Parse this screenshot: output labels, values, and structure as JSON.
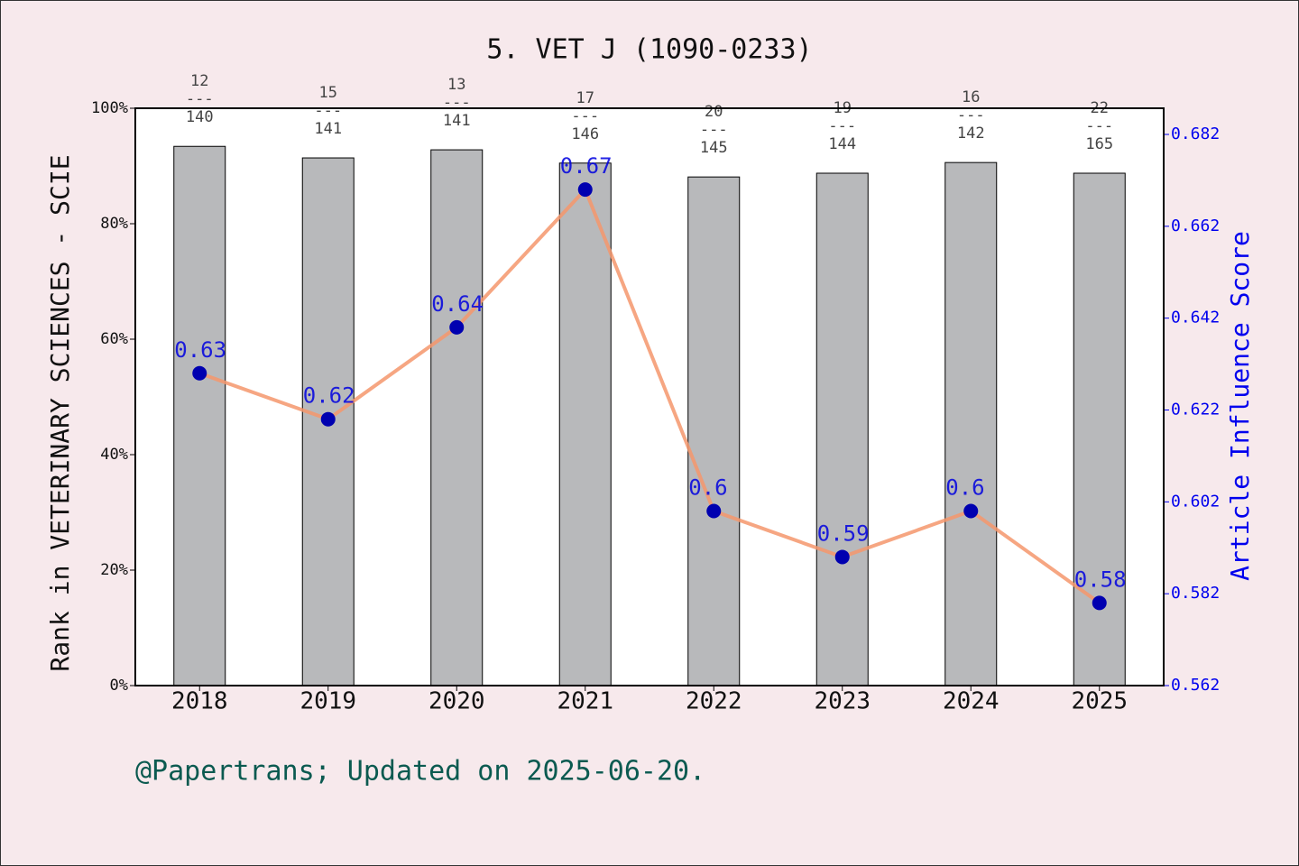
{
  "chart_data": {
    "type": "bar_line",
    "title": "5. VET J (1090-0233)",
    "y_label": "Rank in VETERINARY SCIENCES - SCIE",
    "y2_label": "Article Influence Score",
    "footer": "@Papertrans; Updated on 2025-06-20.",
    "categories": [
      "2018",
      "2019",
      "2020",
      "2021",
      "2022",
      "2023",
      "2024",
      "2025"
    ],
    "series": [
      {
        "type": "bar",
        "color": "#b8b9bb",
        "values": [
          93.4,
          91.4,
          92.8,
          90.5,
          88.1,
          88.75,
          90.6,
          88.75
        ]
      },
      {
        "type": "line",
        "axis": "y2",
        "color": "#f4976c",
        "marker_color": "#0000b0",
        "label_color": "#0000e0",
        "values": [
          0.63,
          0.62,
          0.64,
          0.67,
          0.6,
          0.59,
          0.6,
          0.58
        ]
      }
    ],
    "rank_annotations": [
      {
        "rank": 12,
        "total": 140
      },
      {
        "rank": 15,
        "total": 141
      },
      {
        "rank": 13,
        "total": 141
      },
      {
        "rank": 17,
        "total": 146
      },
      {
        "rank": 20,
        "total": 145
      },
      {
        "rank": 19,
        "total": 144
      },
      {
        "rank": 16,
        "total": 142
      },
      {
        "rank": 22,
        "total": 165
      }
    ],
    "separator": "---",
    "ylim": [
      0,
      100
    ],
    "yticks": [
      {
        "value": 0,
        "label": "0%"
      },
      {
        "value": 20,
        "label": "20%"
      },
      {
        "value": 40,
        "label": "40%"
      },
      {
        "value": 60,
        "label": "60%"
      },
      {
        "value": 80,
        "label": "80%"
      },
      {
        "value": 100,
        "label": "100%"
      }
    ],
    "y2lim": [
      0.562,
      0.6877
    ],
    "y2ticks": [
      0.562,
      0.582,
      0.602,
      0.622,
      0.642,
      0.662,
      0.682
    ]
  }
}
